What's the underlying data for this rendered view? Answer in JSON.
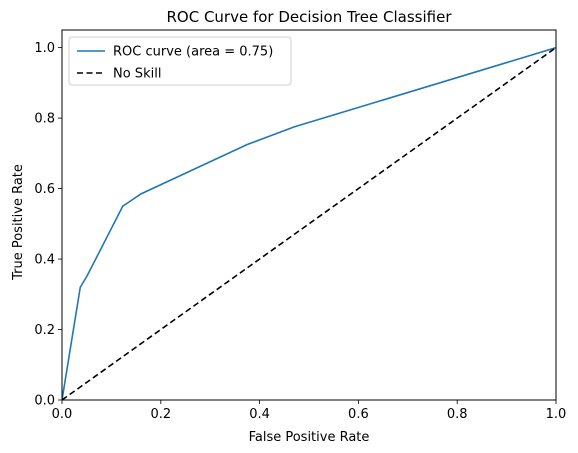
{
  "chart_data": {
    "type": "line",
    "title": "ROC Curve for Decision Tree Classifier",
    "xlabel": "False Positive Rate",
    "ylabel": "True Positive Rate",
    "xlim": [
      0.0,
      1.0
    ],
    "ylim": [
      0.0,
      1.05
    ],
    "xticks": [
      "0.0",
      "0.2",
      "0.4",
      "0.6",
      "0.8",
      "1.0"
    ],
    "yticks": [
      "0.0",
      "0.2",
      "0.4",
      "0.6",
      "0.8",
      "1.0"
    ],
    "grid": false,
    "legend_position": "top-left",
    "series": [
      {
        "name": "ROC curve (area = 0.75)",
        "style": "solid",
        "color": "#1f77b4",
        "x": [
          0.0,
          0.037,
          0.05,
          0.123,
          0.16,
          0.375,
          0.47,
          1.0
        ],
        "y": [
          0.0,
          0.32,
          0.35,
          0.55,
          0.585,
          0.725,
          0.775,
          1.0
        ]
      },
      {
        "name": "No Skill",
        "style": "dashed",
        "color": "#000000",
        "x": [
          0.0,
          1.0
        ],
        "y": [
          0.0,
          1.0
        ]
      }
    ]
  }
}
